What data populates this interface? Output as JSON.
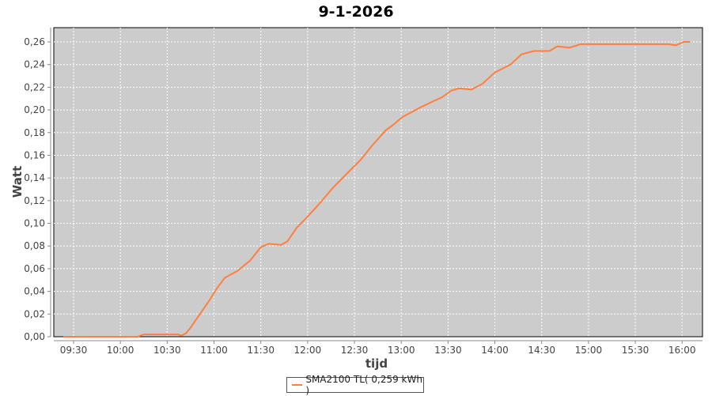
{
  "chart_data": {
    "type": "line",
    "title": "9-1-2026",
    "xlabel": "tijd",
    "ylabel": "Watt",
    "ylim": [
      0,
      0.27
    ],
    "xlim": [
      "09:17",
      "16:10"
    ],
    "grid": true,
    "legend_placement": "bottom",
    "colors": {
      "series": "#ff7f3f",
      "plot_background": "#cccccc",
      "grid": "#ffffff"
    },
    "x_ticks": [
      "09:30",
      "10:00",
      "10:30",
      "11:00",
      "11:30",
      "12:00",
      "12:30",
      "13:00",
      "13:30",
      "14:00",
      "14:30",
      "15:00",
      "15:30",
      "16:00"
    ],
    "y_ticks": [
      "0,00",
      "0,02",
      "0,04",
      "0,06",
      "0,08",
      "0,10",
      "0,12",
      "0,14",
      "0,16",
      "0,18",
      "0,20",
      "0,22",
      "0,24",
      "0,26"
    ],
    "series": [
      {
        "name": "SMA2100 TL( 0,259 kWh )",
        "x": [
          "09:24",
          "10:11",
          "10:15",
          "10:37",
          "10:39",
          "10:42",
          "10:45",
          "10:51",
          "10:57",
          "11:02",
          "11:07",
          "11:15",
          "11:23",
          "11:30",
          "11:35",
          "11:43",
          "11:47",
          "11:53",
          "12:00",
          "12:08",
          "12:16",
          "12:26",
          "12:34",
          "12:41",
          "12:50",
          "12:55",
          "13:01",
          "13:12",
          "13:21",
          "13:26",
          "13:32",
          "13:37",
          "13:45",
          "13:52",
          "14:00",
          "14:10",
          "14:17",
          "14:25",
          "14:35",
          "14:40",
          "14:48",
          "14:55",
          "15:51",
          "15:56",
          "16:01",
          "16:05"
        ],
        "y": [
          0,
          0,
          0.002,
          0.002,
          0.001,
          0.003,
          0.008,
          0.02,
          0.032,
          0.043,
          0.052,
          0.058,
          0.067,
          0.079,
          0.082,
          0.081,
          0.084,
          0.096,
          0.106,
          0.118,
          0.131,
          0.145,
          0.156,
          0.168,
          0.182,
          0.187,
          0.194,
          0.202,
          0.208,
          0.211,
          0.217,
          0.219,
          0.218,
          0.223,
          0.233,
          0.24,
          0.249,
          0.252,
          0.252,
          0.256,
          0.255,
          0.258,
          0.258,
          0.257,
          0.26,
          0.26
        ]
      }
    ]
  }
}
